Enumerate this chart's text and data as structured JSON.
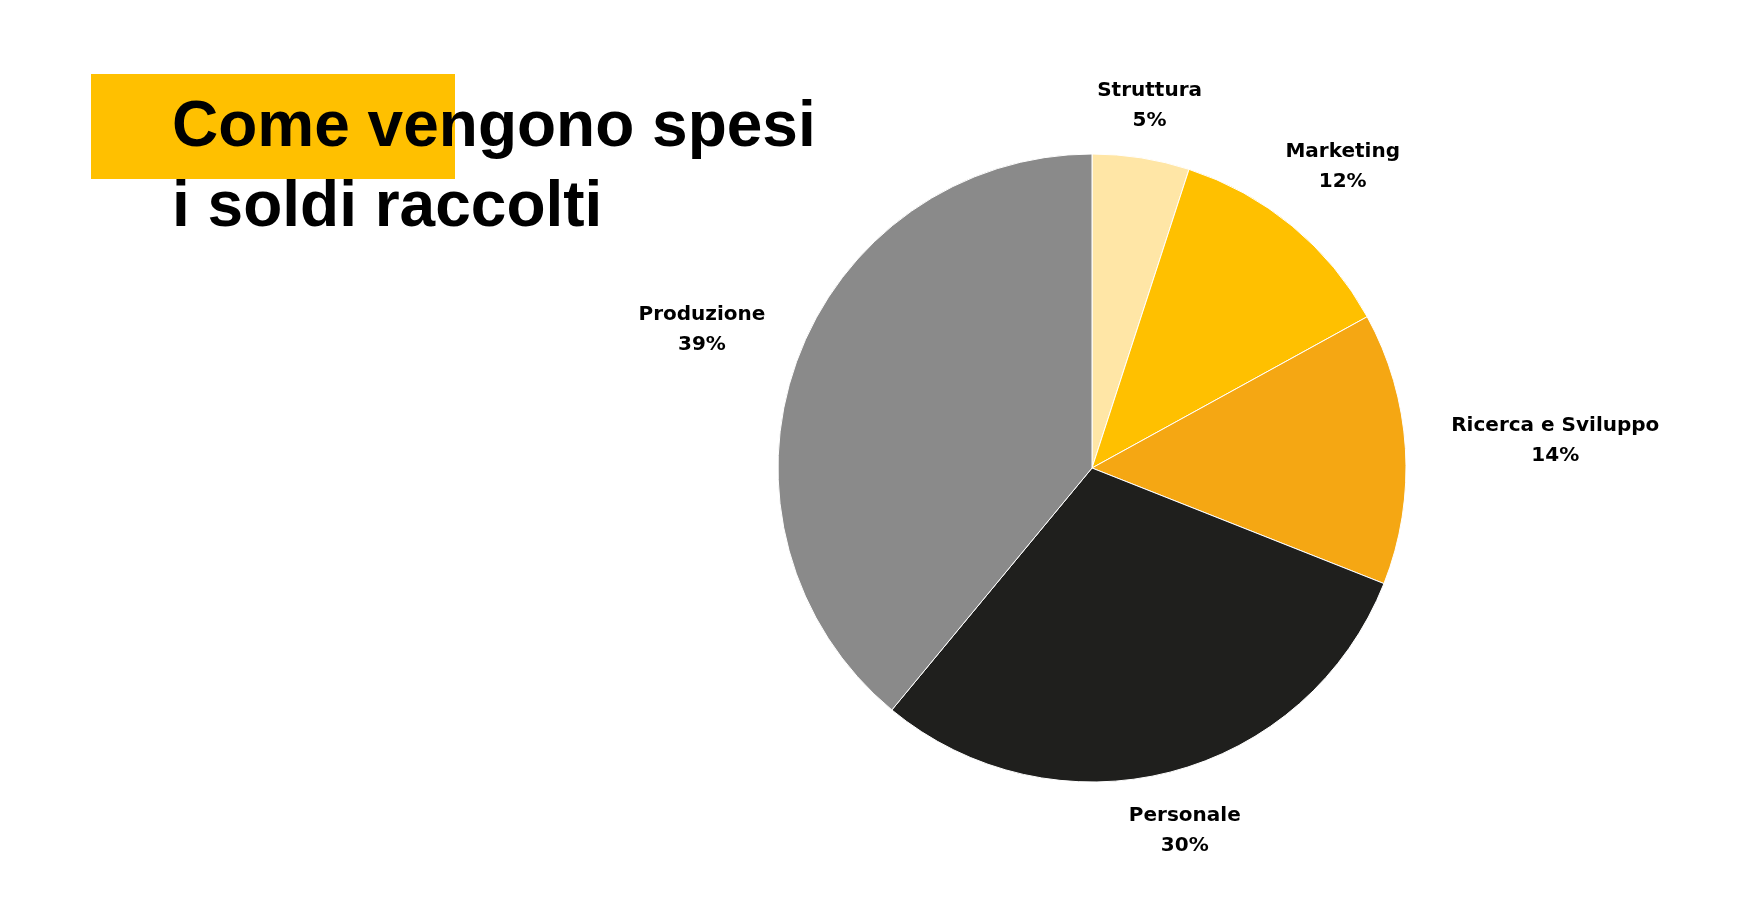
{
  "chart_data": {
    "type": "pie",
    "title": "Come vengono spesi i soldi raccolti",
    "categories": [
      "Struttura",
      "Marketing",
      "Ricerca e Sviluppo",
      "Personale",
      "Produzione"
    ],
    "values": [
      5,
      12,
      14,
      30,
      39
    ],
    "value_labels": [
      "5%",
      "12%",
      "14%",
      "30%",
      "39%"
    ],
    "colors": [
      "#ffe6a6",
      "#ffc000",
      "#f5a713",
      "#1f1f1d",
      "#8a8a8a"
    ]
  }
}
